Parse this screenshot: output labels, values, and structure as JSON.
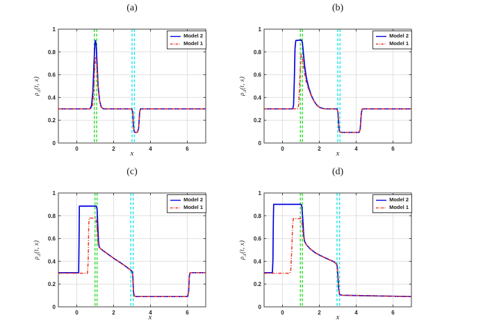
{
  "figure": {
    "background": "#ffffff",
    "axis_color": "#3f3f3f",
    "grid_color": "#e0e0e0",
    "tick_label_color": "#262626",
    "ylabel": {
      "rho": "ρ",
      "sub": "Δ",
      "args": "(t, x)"
    }
  },
  "chart_data": [
    {
      "type": "line",
      "title": "(a)",
      "xlabel": "x",
      "ylabel": "ρ_Δ(t,x)",
      "xlim": [
        -1,
        7
      ],
      "ylim": [
        0,
        1
      ],
      "xticks": [
        0,
        2,
        4,
        6
      ],
      "yticks": [
        0,
        0.2,
        0.4,
        0.6,
        0.8,
        1
      ],
      "grid": true,
      "legend_position": "top-right",
      "vlines": [
        {
          "x": 0.95,
          "color": "#27dd27",
          "style": "dashed"
        },
        {
          "x": 1.08,
          "color": "#27dd27",
          "style": "dashed"
        },
        {
          "x": 3.0,
          "color": "#17e8e8",
          "style": "dashed"
        },
        {
          "x": 3.13,
          "color": "#17e8e8",
          "style": "dashed"
        }
      ],
      "series": [
        {
          "name": "Model 2",
          "color": "#0202e0",
          "style": "solid",
          "points": [
            [
              -1,
              0.3
            ],
            [
              0.72,
              0.3
            ],
            [
              0.8,
              0.33
            ],
            [
              0.87,
              0.45
            ],
            [
              0.93,
              0.68
            ],
            [
              0.98,
              0.87
            ],
            [
              1.01,
              0.9
            ],
            [
              1.05,
              0.87
            ],
            [
              1.1,
              0.7
            ],
            [
              1.16,
              0.5
            ],
            [
              1.24,
              0.37
            ],
            [
              1.33,
              0.315
            ],
            [
              1.45,
              0.3
            ],
            [
              2.98,
              0.3
            ],
            [
              3.04,
              0.27
            ],
            [
              3.08,
              0.14
            ],
            [
              3.12,
              0.098
            ],
            [
              3.2,
              0.092
            ],
            [
              3.3,
              0.095
            ],
            [
              3.36,
              0.13
            ],
            [
              3.41,
              0.27
            ],
            [
              3.46,
              0.3
            ],
            [
              7,
              0.3
            ]
          ]
        },
        {
          "name": "Model 1",
          "color": "#ec3326",
          "style": "dashdot",
          "points": [
            [
              -1,
              0.3
            ],
            [
              0.78,
              0.3
            ],
            [
              0.85,
              0.325
            ],
            [
              0.91,
              0.44
            ],
            [
              0.97,
              0.64
            ],
            [
              1.02,
              0.755
            ],
            [
              1.06,
              0.74
            ],
            [
              1.11,
              0.62
            ],
            [
              1.17,
              0.46
            ],
            [
              1.25,
              0.36
            ],
            [
              1.35,
              0.31
            ],
            [
              1.48,
              0.3
            ],
            [
              2.98,
              0.3
            ],
            [
              3.04,
              0.27
            ],
            [
              3.08,
              0.14
            ],
            [
              3.12,
              0.098
            ],
            [
              3.2,
              0.092
            ],
            [
              3.3,
              0.095
            ],
            [
              3.36,
              0.13
            ],
            [
              3.41,
              0.27
            ],
            [
              3.46,
              0.3
            ],
            [
              7,
              0.3
            ]
          ]
        }
      ]
    },
    {
      "type": "line",
      "title": "(b)",
      "xlabel": "x",
      "ylabel": "ρ_Δ(t,x)",
      "xlim": [
        -1,
        7
      ],
      "ylim": [
        0,
        1
      ],
      "xticks": [
        0,
        2,
        4,
        6
      ],
      "yticks": [
        0,
        0.2,
        0.4,
        0.6,
        0.8,
        1
      ],
      "grid": true,
      "legend_position": "top-right",
      "vlines": [
        {
          "x": 0.97,
          "color": "#27dd27",
          "style": "dashed"
        },
        {
          "x": 1.08,
          "color": "#27dd27",
          "style": "dashed"
        },
        {
          "x": 3.0,
          "color": "#17e8e8",
          "style": "dashed"
        },
        {
          "x": 3.12,
          "color": "#17e8e8",
          "style": "dashed"
        }
      ],
      "series": [
        {
          "name": "Model 2",
          "color": "#0202e0",
          "style": "solid",
          "points": [
            [
              -1,
              0.3
            ],
            [
              0.55,
              0.3
            ],
            [
              0.6,
              0.33
            ],
            [
              0.64,
              0.55
            ],
            [
              0.68,
              0.83
            ],
            [
              0.72,
              0.9
            ],
            [
              0.9,
              0.903
            ],
            [
              1.02,
              0.905
            ],
            [
              1.08,
              0.885
            ],
            [
              1.14,
              0.78
            ],
            [
              1.2,
              0.68
            ],
            [
              1.3,
              0.57
            ],
            [
              1.42,
              0.49
            ],
            [
              1.56,
              0.42
            ],
            [
              1.72,
              0.365
            ],
            [
              1.88,
              0.33
            ],
            [
              2.05,
              0.31
            ],
            [
              2.25,
              0.301
            ],
            [
              2.4,
              0.3
            ],
            [
              2.96,
              0.3
            ],
            [
              3.01,
              0.27
            ],
            [
              3.06,
              0.14
            ],
            [
              3.1,
              0.1
            ],
            [
              3.18,
              0.093
            ],
            [
              4.16,
              0.093
            ],
            [
              4.22,
              0.12
            ],
            [
              4.28,
              0.26
            ],
            [
              4.33,
              0.3
            ],
            [
              7,
              0.3
            ]
          ]
        },
        {
          "name": "Model 1",
          "color": "#ec3326",
          "style": "dashdot",
          "points": [
            [
              -1,
              0.3
            ],
            [
              0.82,
              0.3
            ],
            [
              0.87,
              0.33
            ],
            [
              0.92,
              0.48
            ],
            [
              0.97,
              0.68
            ],
            [
              1.01,
              0.775
            ],
            [
              1.06,
              0.765
            ],
            [
              1.12,
              0.7
            ],
            [
              1.2,
              0.61
            ],
            [
              1.3,
              0.53
            ],
            [
              1.44,
              0.46
            ],
            [
              1.6,
              0.4
            ],
            [
              1.76,
              0.355
            ],
            [
              1.92,
              0.325
            ],
            [
              2.1,
              0.307
            ],
            [
              2.3,
              0.3
            ],
            [
              2.96,
              0.3
            ],
            [
              3.01,
              0.27
            ],
            [
              3.06,
              0.14
            ],
            [
              3.1,
              0.1
            ],
            [
              3.18,
              0.093
            ],
            [
              4.16,
              0.093
            ],
            [
              4.22,
              0.12
            ],
            [
              4.28,
              0.26
            ],
            [
              4.33,
              0.3
            ],
            [
              7,
              0.3
            ]
          ]
        }
      ]
    },
    {
      "type": "line",
      "title": "(c)",
      "xlabel": "x",
      "ylabel": "ρ_Δ(t,x)",
      "xlim": [
        -1,
        7
      ],
      "ylim": [
        0,
        1
      ],
      "xticks": [
        0,
        2,
        4,
        6
      ],
      "yticks": [
        0,
        0.2,
        0.4,
        0.6,
        0.8,
        1
      ],
      "grid": true,
      "legend_position": "top-right",
      "vlines": [
        {
          "x": 0.99,
          "color": "#27dd27",
          "style": "dashed"
        },
        {
          "x": 1.1,
          "color": "#27dd27",
          "style": "dashed"
        },
        {
          "x": 2.93,
          "color": "#17e8e8",
          "style": "dashed"
        },
        {
          "x": 3.06,
          "color": "#17e8e8",
          "style": "dashed"
        }
      ],
      "series": [
        {
          "name": "Model 2",
          "color": "#0202e0",
          "style": "solid",
          "points": [
            [
              -1,
              0.3
            ],
            [
              0.1,
              0.3
            ],
            [
              0.12,
              0.55
            ],
            [
              0.14,
              0.885
            ],
            [
              1.06,
              0.885
            ],
            [
              1.1,
              0.86
            ],
            [
              1.14,
              0.72
            ],
            [
              1.18,
              0.57
            ],
            [
              1.22,
              0.525
            ],
            [
              1.3,
              0.51
            ],
            [
              1.5,
              0.485
            ],
            [
              1.8,
              0.45
            ],
            [
              2.1,
              0.415
            ],
            [
              2.4,
              0.385
            ],
            [
              2.7,
              0.35
            ],
            [
              2.9,
              0.325
            ],
            [
              3.0,
              0.312
            ],
            [
              3.04,
              0.27
            ],
            [
              3.08,
              0.13
            ],
            [
              3.12,
              0.095
            ],
            [
              3.25,
              0.09
            ],
            [
              6.02,
              0.09
            ],
            [
              6.07,
              0.13
            ],
            [
              6.11,
              0.27
            ],
            [
              6.15,
              0.3
            ],
            [
              7,
              0.3
            ]
          ]
        },
        {
          "name": "Model 1",
          "color": "#ec3326",
          "style": "dashdot",
          "points": [
            [
              -1,
              0.295
            ],
            [
              0.58,
              0.295
            ],
            [
              0.62,
              0.4
            ],
            [
              0.65,
              0.72
            ],
            [
              0.67,
              0.78
            ],
            [
              1.0,
              0.78
            ],
            [
              1.05,
              0.765
            ],
            [
              1.1,
              0.69
            ],
            [
              1.15,
              0.57
            ],
            [
              1.2,
              0.525
            ],
            [
              1.3,
              0.51
            ],
            [
              1.5,
              0.485
            ],
            [
              1.8,
              0.45
            ],
            [
              2.1,
              0.415
            ],
            [
              2.4,
              0.385
            ],
            [
              2.7,
              0.35
            ],
            [
              2.9,
              0.325
            ],
            [
              3.0,
              0.312
            ],
            [
              3.04,
              0.27
            ],
            [
              3.08,
              0.13
            ],
            [
              3.12,
              0.095
            ],
            [
              3.25,
              0.09
            ],
            [
              6.02,
              0.09
            ],
            [
              6.07,
              0.13
            ],
            [
              6.11,
              0.27
            ],
            [
              6.15,
              0.3
            ],
            [
              7,
              0.3
            ]
          ]
        }
      ]
    },
    {
      "type": "line",
      "title": "(d)",
      "xlabel": "x",
      "ylabel": "ρ_Δ(t,x)",
      "xlim": [
        -1,
        7
      ],
      "ylim": [
        0,
        1
      ],
      "xticks": [
        0,
        2,
        4,
        6
      ],
      "yticks": [
        0,
        0.2,
        0.4,
        0.6,
        0.8,
        1
      ],
      "grid": true,
      "legend_position": "top-right",
      "vlines": [
        {
          "x": 0.97,
          "color": "#27dd27",
          "style": "dashed"
        },
        {
          "x": 1.08,
          "color": "#27dd27",
          "style": "dashed"
        },
        {
          "x": 2.96,
          "color": "#17e8e8",
          "style": "dashed"
        },
        {
          "x": 3.1,
          "color": "#17e8e8",
          "style": "dashed"
        }
      ],
      "series": [
        {
          "name": "Model 2",
          "color": "#0202e0",
          "style": "solid",
          "points": [
            [
              -1,
              0.3
            ],
            [
              -0.55,
              0.3
            ],
            [
              -0.52,
              0.4
            ],
            [
              -0.5,
              0.75
            ],
            [
              -0.48,
              0.9
            ],
            [
              1.0,
              0.9
            ],
            [
              1.05,
              0.885
            ],
            [
              1.1,
              0.77
            ],
            [
              1.15,
              0.63
            ],
            [
              1.2,
              0.575
            ],
            [
              1.3,
              0.545
            ],
            [
              1.5,
              0.51
            ],
            [
              1.75,
              0.478
            ],
            [
              2.0,
              0.455
            ],
            [
              2.3,
              0.432
            ],
            [
              2.6,
              0.41
            ],
            [
              2.8,
              0.395
            ],
            [
              2.92,
              0.378
            ],
            [
              2.97,
              0.36
            ],
            [
              3.01,
              0.27
            ],
            [
              3.05,
              0.16
            ],
            [
              3.1,
              0.108
            ],
            [
              3.25,
              0.102
            ],
            [
              3.8,
              0.1
            ],
            [
              4.8,
              0.097
            ],
            [
              6.0,
              0.093
            ],
            [
              7,
              0.09
            ]
          ]
        },
        {
          "name": "Model 1",
          "color": "#ec3326",
          "style": "dashdot",
          "points": [
            [
              -1,
              0.295
            ],
            [
              0.4,
              0.295
            ],
            [
              0.45,
              0.32
            ],
            [
              0.5,
              0.5
            ],
            [
              0.55,
              0.72
            ],
            [
              0.59,
              0.775
            ],
            [
              0.98,
              0.775
            ],
            [
              1.03,
              0.765
            ],
            [
              1.08,
              0.71
            ],
            [
              1.14,
              0.62
            ],
            [
              1.2,
              0.57
            ],
            [
              1.3,
              0.545
            ],
            [
              1.5,
              0.51
            ],
            [
              1.75,
              0.478
            ],
            [
              2.0,
              0.455
            ],
            [
              2.3,
              0.432
            ],
            [
              2.6,
              0.41
            ],
            [
              2.8,
              0.395
            ],
            [
              2.92,
              0.378
            ],
            [
              2.97,
              0.36
            ],
            [
              3.01,
              0.27
            ],
            [
              3.05,
              0.16
            ],
            [
              3.1,
              0.108
            ],
            [
              3.25,
              0.102
            ],
            [
              3.8,
              0.1
            ],
            [
              4.8,
              0.097
            ],
            [
              6.0,
              0.093
            ],
            [
              7,
              0.09
            ]
          ]
        }
      ]
    }
  ]
}
